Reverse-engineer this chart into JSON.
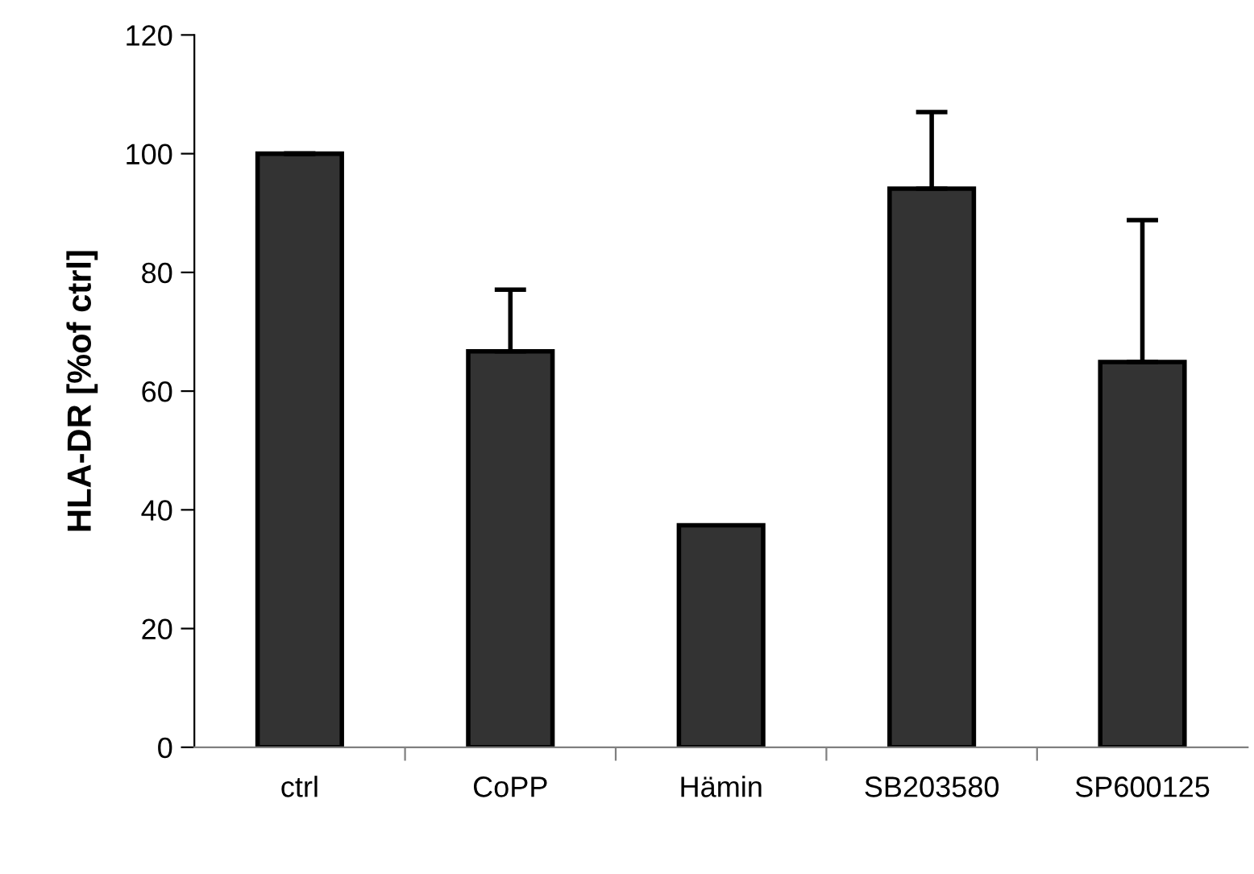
{
  "chart_data": {
    "type": "bar",
    "ylabel": "HLA-DR [%of ctrl]",
    "categories": [
      "ctrl",
      "CoPP",
      "Hämin",
      "SB203580",
      "SP600125"
    ],
    "values": [
      100,
      66.7,
      37.4,
      94.1,
      64.9
    ],
    "errors": [
      [
        100,
        100
      ],
      [
        66.7,
        77.1
      ],
      null,
      [
        94.1,
        107
      ],
      [
        64.9,
        88.8
      ]
    ],
    "color": "#333333",
    "ylim": [
      0,
      120
    ],
    "yticks": [
      0,
      20,
      40,
      60,
      80,
      100,
      120
    ],
    "grid": false
  }
}
